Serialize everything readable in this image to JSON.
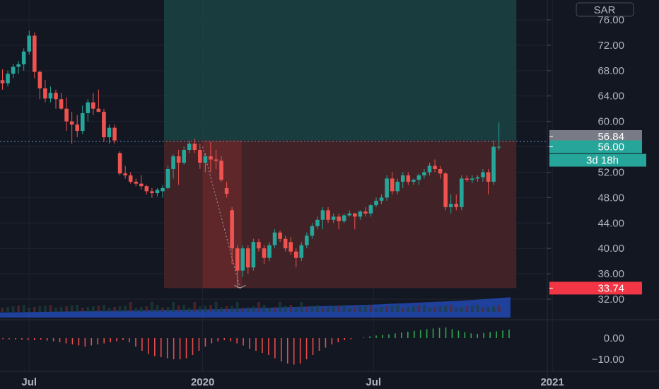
{
  "currency_label": "SAR",
  "price_tags": {
    "last_price": "56.84",
    "current": "56.00",
    "countdown": "3d 18h",
    "stop": "33.74"
  },
  "colors": {
    "background": "#131722",
    "grid": "#1f2430",
    "up": "#26a69a",
    "down": "#ef5350",
    "target_zone": "#1b4443",
    "stop_zone": "#4a2527",
    "volume": "#2962ff",
    "macd_up": "#2fa84f",
    "macd_down": "#e84b4b",
    "tag_gray": "#787b86",
    "tag_teal": "#26a69a",
    "tag_red": "#f23645"
  },
  "chart_data": [
    {
      "type": "candlestick",
      "title": "",
      "y_axis_ticks": [
        76.0,
        72.0,
        68.0,
        64.0,
        60.0,
        56.0,
        52.0,
        48.0,
        44.0,
        40.0,
        36.0,
        32.0
      ],
      "y_axis_labels": [
        "76.00",
        "72.00",
        "68.00",
        "64.00",
        "60.00",
        "56.00",
        "52.00",
        "48.00",
        "44.00",
        "40.00",
        "36.00",
        "32.00"
      ],
      "ylim": [
        30.5,
        78.0
      ],
      "x_axis_labels": [
        "Jul",
        "2020",
        "Jul",
        "2021"
      ],
      "x_axis_label_positions_week": [
        5,
        37.5,
        69.5,
        103
      ],
      "candles_week_ohlc": [
        [
          0,
          66.5,
          68.2,
          65.0,
          66.0
        ],
        [
          1,
          66.0,
          68.0,
          65.5,
          67.5
        ],
        [
          2,
          67.5,
          69.0,
          66.8,
          68.6
        ],
        [
          3,
          68.6,
          69.5,
          67.5,
          69.0
        ],
        [
          4,
          69.0,
          71.5,
          68.0,
          71.0
        ],
        [
          5,
          71.0,
          74.3,
          70.5,
          73.5
        ],
        [
          6,
          73.5,
          74.0,
          66.8,
          67.8
        ],
        [
          7,
          67.8,
          68.0,
          63.5,
          65.2
        ],
        [
          8,
          65.2,
          66.5,
          63.0,
          63.6
        ],
        [
          9,
          63.6,
          65.5,
          63.0,
          64.5
        ],
        [
          10,
          64.5,
          65.0,
          62.0,
          63.5
        ],
        [
          11,
          63.5,
          64.5,
          61.8,
          62.0
        ],
        [
          12,
          62.0,
          63.8,
          58.5,
          60.0
        ],
        [
          13,
          60.0,
          61.5,
          56.5,
          59.5
        ],
        [
          14,
          59.5,
          61.0,
          57.5,
          58.5
        ],
        [
          15,
          58.5,
          62.5,
          58.0,
          61.3
        ],
        [
          16,
          61.3,
          63.5,
          60.0,
          63.0
        ],
        [
          17,
          63.0,
          64.5,
          61.0,
          62.0
        ],
        [
          18,
          62.0,
          65.0,
          61.5,
          61.5
        ],
        [
          19,
          61.5,
          62.0,
          56.8,
          57.5
        ],
        [
          20,
          57.5,
          59.5,
          56.5,
          59.0
        ],
        [
          21,
          59.0,
          59.5,
          56.5,
          57.0
        ],
        [
          22,
          55.0,
          55.3,
          51.5,
          51.8
        ],
        [
          23,
          51.8,
          53.0,
          51.0,
          51.5
        ],
        [
          24,
          51.5,
          52.0,
          50.2,
          50.5
        ],
        [
          25,
          50.5,
          51.0,
          49.8,
          50.2
        ],
        [
          26,
          50.2,
          51.5,
          49.3,
          49.8
        ],
        [
          27,
          49.8,
          50.0,
          48.5,
          49.0
        ],
        [
          28,
          49.0,
          49.5,
          48.0,
          48.7
        ],
        [
          29,
          48.7,
          49.5,
          48.2,
          49.2
        ],
        [
          30,
          49.0,
          50.0,
          48.0,
          49.5
        ],
        [
          31,
          49.5,
          53.0,
          49.3,
          52.5
        ],
        [
          32,
          52.5,
          54.8,
          51.0,
          54.5
        ],
        [
          33,
          54.5,
          55.5,
          50.0,
          53.5
        ],
        [
          34,
          53.5,
          56.0,
          53.2,
          55.5
        ],
        [
          35,
          55.5,
          57.0,
          55.0,
          56.5
        ],
        [
          36,
          56.5,
          57.2,
          55.0,
          55.5
        ],
        [
          37,
          55.5,
          56.5,
          52.5,
          53.5
        ],
        [
          38,
          53.5,
          55.0,
          52.0,
          54.5
        ],
        [
          39,
          54.5,
          56.8,
          52.0,
          54.0
        ],
        [
          40,
          54.0,
          55.5,
          52.5,
          53.8
        ],
        [
          41,
          53.8,
          54.5,
          50.5,
          50.8
        ],
        [
          42,
          49.5,
          50.5,
          48.0,
          48.6
        ],
        [
          43,
          46.0,
          46.5,
          37.5,
          40.0
        ],
        [
          44,
          40.0,
          40.5,
          33.74,
          36.5
        ],
        [
          45,
          36.5,
          40.5,
          35.5,
          40.0
        ],
        [
          46,
          40.0,
          40.5,
          36.0,
          37.0
        ],
        [
          47,
          37.0,
          41.5,
          36.5,
          41.0
        ],
        [
          48,
          41.0,
          41.5,
          39.5,
          40.0
        ],
        [
          49,
          40.0,
          40.5,
          37.5,
          38.5
        ],
        [
          50,
          38.5,
          41.0,
          38.0,
          40.5
        ],
        [
          51,
          40.5,
          43.0,
          40.0,
          42.5
        ],
        [
          52,
          42.5,
          42.8,
          41.0,
          41.5
        ],
        [
          53,
          41.5,
          42.0,
          39.5,
          40.0
        ],
        [
          54,
          41.0,
          41.8,
          39.0,
          39.5
        ],
        [
          55,
          39.5,
          40.0,
          37.0,
          38.5
        ],
        [
          56,
          38.5,
          41.0,
          38.0,
          40.5
        ],
        [
          57,
          40.5,
          42.5,
          40.0,
          42.0
        ],
        [
          58,
          42.0,
          44.0,
          41.5,
          43.5
        ],
        [
          59,
          43.5,
          45.0,
          43.0,
          44.5
        ],
        [
          60,
          44.5,
          46.5,
          43.0,
          46.0
        ],
        [
          61,
          46.0,
          46.5,
          44.0,
          44.5
        ],
        [
          62,
          44.5,
          45.5,
          44.0,
          45.0
        ],
        [
          63,
          45.0,
          45.5,
          43.0,
          44.3
        ],
        [
          64,
          44.3,
          45.5,
          44.0,
          45.2
        ],
        [
          65,
          45.2,
          46.0,
          45.0,
          45.5
        ],
        [
          66,
          45.5,
          45.6,
          43.0,
          45.0
        ],
        [
          67,
          45.0,
          46.0,
          44.5,
          45.8
        ],
        [
          68,
          45.8,
          46.5,
          45.0,
          45.5
        ],
        [
          69,
          45.5,
          47.0,
          45.0,
          46.8
        ],
        [
          70,
          46.8,
          48.0,
          46.5,
          47.5
        ],
        [
          71,
          47.5,
          48.5,
          47.0,
          48.0
        ],
        [
          72,
          48.0,
          51.5,
          47.5,
          51.0
        ],
        [
          73,
          51.0,
          52.0,
          48.5,
          49.0
        ],
        [
          74,
          49.0,
          51.0,
          48.5,
          50.5
        ],
        [
          75,
          50.5,
          52.0,
          49.5,
          51.5
        ],
        [
          76,
          51.5,
          52.0,
          50.0,
          50.5
        ],
        [
          77,
          50.5,
          51.0,
          50.0,
          50.8
        ],
        [
          78,
          50.8,
          51.8,
          50.0,
          51.5
        ],
        [
          79,
          51.5,
          52.5,
          51.0,
          52.0
        ],
        [
          80,
          52.0,
          53.5,
          51.5,
          53.0
        ],
        [
          81,
          53.0,
          54.0,
          52.0,
          52.5
        ],
        [
          82,
          52.5,
          53.0,
          51.0,
          51.8
        ],
        [
          83,
          51.8,
          52.0,
          46.0,
          46.5
        ],
        [
          84,
          46.5,
          48.5,
          45.5,
          47.0
        ],
        [
          85,
          47.0,
          48.5,
          46.0,
          46.5
        ],
        [
          86,
          46.5,
          51.5,
          46.0,
          51.0
        ],
        [
          87,
          51.0,
          51.5,
          50.5,
          50.8
        ],
        [
          88,
          50.8,
          51.5,
          50.3,
          51.0
        ],
        [
          89,
          51.0,
          51.5,
          50.5,
          51.2
        ],
        [
          90,
          51.2,
          52.5,
          50.5,
          52.0
        ],
        [
          91,
          52.0,
          52.5,
          48.5,
          50.5
        ],
        [
          92,
          50.5,
          57.0,
          50.0,
          56.0
        ],
        [
          93,
          56.0,
          59.8,
          55.5,
          56.0
        ]
      ],
      "trade_zone": {
        "start_week": 30,
        "end_week": 96,
        "entry": 57.0,
        "target": 78.0,
        "stop": 33.74
      },
      "dotted_path": [
        [
          37.5,
          56.0
        ],
        [
          44.5,
          33.74
        ]
      ],
      "last_price": 56.84,
      "current_price": 56.0
    },
    {
      "type": "bar",
      "series": [
        {
          "values": [
            2.0,
            2.1,
            2.2,
            2.3,
            2.4,
            2.5,
            2.6,
            2.7,
            2.8,
            2.9,
            3.0,
            3.1,
            3.2,
            3.3,
            3.5,
            3.7,
            3.9,
            4.1,
            4.3,
            4.5,
            4.7,
            4.9,
            5.1,
            5.4,
            5.7,
            6.0,
            6.3,
            6.6,
            7.0,
            7.5,
            8.0
          ]
        }
      ]
    },
    {
      "type": "bar",
      "y_axis_ticks": [
        0.0,
        -10.0
      ],
      "y_axis_labels": [
        "0.00",
        "−10.00"
      ],
      "ylim": [
        -14.0,
        6.0
      ],
      "values": [
        -0.5,
        -0.6,
        -0.7,
        -0.8,
        -0.9,
        -1.0,
        -0.8,
        -1.2,
        -1.5,
        -2.0,
        -2.5,
        -3.0,
        -3.5,
        -4.0,
        -3.5,
        -3.0,
        -2.5,
        -2.0,
        -1.5,
        -1.0,
        -2.0,
        -4.0,
        -6.0,
        -7.5,
        -8.5,
        -9.0,
        -9.5,
        -10.0,
        -10.0,
        -9.5,
        -8.0,
        -6.0,
        -4.0,
        -2.5,
        -1.5,
        -1.0,
        -1.5,
        -2.5,
        -3.5,
        -5.0,
        -6.0,
        -7.0,
        -8.0,
        -9.5,
        -11.0,
        -12.0,
        -12.5,
        -12.0,
        -10.0,
        -8.0,
        -6.0,
        -4.5,
        -3.0,
        -2.0,
        -1.0,
        -0.5,
        0.0,
        0.3,
        0.8,
        1.2,
        1.5,
        1.8,
        2.2,
        2.6,
        3.0,
        3.4,
        3.8,
        4.2,
        4.5,
        4.8,
        5.0,
        4.2,
        3.5,
        2.8,
        2.2,
        2.0,
        2.4,
        2.8,
        3.2,
        3.6,
        4.0
      ]
    }
  ]
}
